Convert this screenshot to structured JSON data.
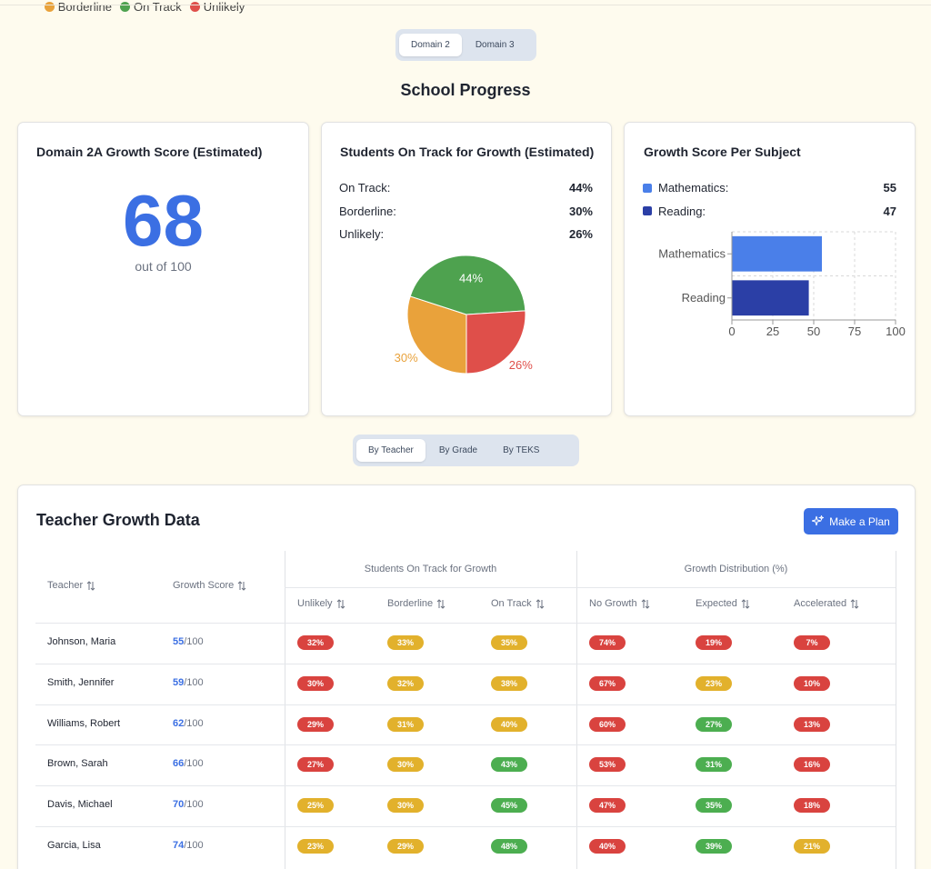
{
  "tabs": {
    "items": [
      "Domain 2",
      "Domain 3"
    ],
    "active": 0
  },
  "title": "School Progress",
  "score_card": {
    "title": "Domain 2A Growth Score (Estimated)",
    "score": 68,
    "caption": "out of 100"
  },
  "track_card": {
    "title": "Students On Track for Growth (Estimated)",
    "rows": [
      {
        "label": "On Track:",
        "value": "44%"
      },
      {
        "label": "Borderline:",
        "value": "30%"
      },
      {
        "label": "Unlikely:",
        "value": "26%"
      }
    ]
  },
  "subject_card": {
    "title": "Growth Score Per Subject",
    "rows": [
      {
        "label": "Mathematics:"
      },
      {
        "label": "Reading:"
      }
    ]
  },
  "chart_data": [
    {
      "type": "pie",
      "categories": [
        "Borderline",
        "On Track",
        "Unlikely"
      ],
      "values": [
        30,
        44,
        26
      ],
      "value_labels": [
        "30%",
        "44%",
        "26%"
      ],
      "colors": [
        "#e9a23b",
        "#4ea24f",
        "#df4f4a"
      ],
      "legend": "bottom"
    },
    {
      "type": "bar",
      "orientation": "horizontal",
      "categories": [
        "Mathematics",
        "Reading"
      ],
      "values": [
        55,
        47
      ],
      "colors": [
        "#4a7fe9",
        "#2b3fa6"
      ],
      "xlim": [
        0,
        100
      ],
      "xticks": [
        0,
        25,
        50,
        75,
        100
      ],
      "grid": true
    }
  ],
  "view_tabs": {
    "items": [
      "By Teacher",
      "By Grade",
      "By TEKS"
    ],
    "active": 0
  },
  "table": {
    "title": "Teacher Growth Data",
    "button": "Make a Plan",
    "groups": [
      "Students On Track for Growth",
      "Growth Distribution (%)"
    ],
    "columns": [
      "Teacher",
      "Growth Score",
      "Unlikely",
      "Borderline",
      "On Track",
      "No Growth",
      "Expected",
      "Accelerated"
    ],
    "score_suffix": "/100",
    "rows": [
      {
        "teacher": "Johnson, Maria",
        "score": 55,
        "cells": [
          [
            "32%",
            "red"
          ],
          [
            "33%",
            "yellow"
          ],
          [
            "35%",
            "yellow"
          ],
          [
            "74%",
            "red"
          ],
          [
            "19%",
            "red"
          ],
          [
            "7%",
            "red"
          ]
        ]
      },
      {
        "teacher": "Smith, Jennifer",
        "score": 59,
        "cells": [
          [
            "30%",
            "red"
          ],
          [
            "32%",
            "yellow"
          ],
          [
            "38%",
            "yellow"
          ],
          [
            "67%",
            "red"
          ],
          [
            "23%",
            "yellow"
          ],
          [
            "10%",
            "red"
          ]
        ]
      },
      {
        "teacher": "Williams, Robert",
        "score": 62,
        "cells": [
          [
            "29%",
            "red"
          ],
          [
            "31%",
            "yellow"
          ],
          [
            "40%",
            "yellow"
          ],
          [
            "60%",
            "red"
          ],
          [
            "27%",
            "green"
          ],
          [
            "13%",
            "red"
          ]
        ]
      },
      {
        "teacher": "Brown, Sarah",
        "score": 66,
        "cells": [
          [
            "27%",
            "red"
          ],
          [
            "30%",
            "yellow"
          ],
          [
            "43%",
            "green"
          ],
          [
            "53%",
            "red"
          ],
          [
            "31%",
            "green"
          ],
          [
            "16%",
            "red"
          ]
        ]
      },
      {
        "teacher": "Davis, Michael",
        "score": 70,
        "cells": [
          [
            "25%",
            "yellow"
          ],
          [
            "30%",
            "yellow"
          ],
          [
            "45%",
            "green"
          ],
          [
            "47%",
            "red"
          ],
          [
            "35%",
            "green"
          ],
          [
            "18%",
            "red"
          ]
        ]
      },
      {
        "teacher": "Garcia, Lisa",
        "score": 74,
        "cells": [
          [
            "23%",
            "yellow"
          ],
          [
            "29%",
            "yellow"
          ],
          [
            "48%",
            "green"
          ],
          [
            "40%",
            "red"
          ],
          [
            "39%",
            "green"
          ],
          [
            "21%",
            "yellow"
          ]
        ]
      }
    ]
  }
}
